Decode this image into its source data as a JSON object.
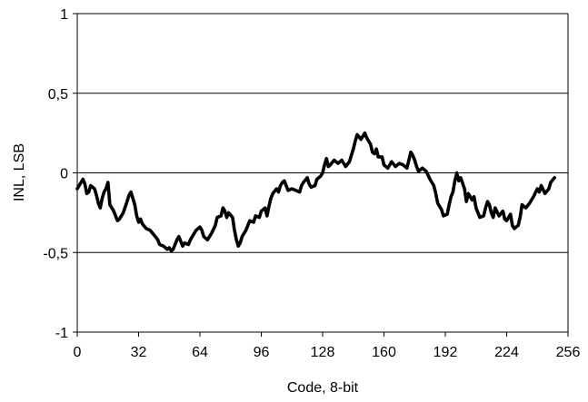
{
  "chart_data": {
    "type": "line",
    "title": "",
    "xlabel": "Code, 8-bit",
    "ylabel": "INL, LSB",
    "xlim": [
      0,
      256
    ],
    "ylim": [
      -1,
      1
    ],
    "x_ticks": [
      0,
      32,
      64,
      96,
      128,
      160,
      192,
      224,
      256
    ],
    "x_tick_labels": [
      "0",
      "32",
      "64",
      "96",
      "128",
      "160",
      "192",
      "224",
      "256"
    ],
    "y_ticks": [
      1,
      0.5,
      0,
      -0.5,
      -1
    ],
    "y_tick_labels": [
      "1",
      "0,5",
      "0",
      "-0,5",
      "-1"
    ],
    "grid": "horizontal",
    "legend": "none",
    "line_color": "#000000",
    "series": [
      {
        "points": [
          [
            0,
            -0.1
          ],
          [
            2,
            -0.06
          ],
          [
            3,
            -0.04
          ],
          [
            4,
            -0.07
          ],
          [
            5,
            -0.13
          ],
          [
            6,
            -0.12
          ],
          [
            7,
            -0.08
          ],
          [
            9,
            -0.1
          ],
          [
            10,
            -0.14
          ],
          [
            11,
            -0.19
          ],
          [
            12,
            -0.22
          ],
          [
            13,
            -0.16
          ],
          [
            14,
            -0.12
          ],
          [
            15,
            -0.1
          ],
          [
            16,
            -0.06
          ],
          [
            17,
            -0.2
          ],
          [
            18,
            -0.22
          ],
          [
            19,
            -0.24
          ],
          [
            20,
            -0.27
          ],
          [
            21,
            -0.3
          ],
          [
            22,
            -0.29
          ],
          [
            24,
            -0.25
          ],
          [
            26,
            -0.18
          ],
          [
            27,
            -0.14
          ],
          [
            28,
            -0.12
          ],
          [
            29,
            -0.16
          ],
          [
            30,
            -0.2
          ],
          [
            31,
            -0.27
          ],
          [
            32,
            -0.31
          ],
          [
            33,
            -0.29
          ],
          [
            34,
            -0.32
          ],
          [
            36,
            -0.35
          ],
          [
            38,
            -0.36
          ],
          [
            40,
            -0.39
          ],
          [
            42,
            -0.42
          ],
          [
            43,
            -0.45
          ],
          [
            45,
            -0.46
          ],
          [
            47,
            -0.48
          ],
          [
            48,
            -0.47
          ],
          [
            49,
            -0.49
          ],
          [
            50,
            -0.48
          ],
          [
            51,
            -0.45
          ],
          [
            52,
            -0.42
          ],
          [
            53,
            -0.4
          ],
          [
            54,
            -0.43
          ],
          [
            55,
            -0.46
          ],
          [
            56,
            -0.44
          ],
          [
            58,
            -0.45
          ],
          [
            59,
            -0.42
          ],
          [
            60,
            -0.4
          ],
          [
            62,
            -0.36
          ],
          [
            64,
            -0.34
          ],
          [
            65,
            -0.36
          ],
          [
            66,
            -0.4
          ],
          [
            68,
            -0.42
          ],
          [
            70,
            -0.38
          ],
          [
            72,
            -0.33
          ],
          [
            73,
            -0.28
          ],
          [
            75,
            -0.27
          ],
          [
            76,
            -0.22
          ],
          [
            77,
            -0.24
          ],
          [
            78,
            -0.28
          ],
          [
            79,
            -0.25
          ],
          [
            81,
            -0.28
          ],
          [
            82,
            -0.36
          ],
          [
            83,
            -0.42
          ],
          [
            84,
            -0.46
          ],
          [
            85,
            -0.44
          ],
          [
            86,
            -0.4
          ],
          [
            87,
            -0.38
          ],
          [
            88,
            -0.36
          ],
          [
            89,
            -0.33
          ],
          [
            90,
            -0.3
          ],
          [
            92,
            -0.31
          ],
          [
            93,
            -0.27
          ],
          [
            95,
            -0.28
          ],
          [
            96,
            -0.24
          ],
          [
            98,
            -0.22
          ],
          [
            99,
            -0.27
          ],
          [
            100,
            -0.21
          ],
          [
            101,
            -0.16
          ],
          [
            102,
            -0.13
          ],
          [
            104,
            -0.1
          ],
          [
            105,
            -0.12
          ],
          [
            106,
            -0.08
          ],
          [
            107,
            -0.06
          ],
          [
            108,
            -0.05
          ],
          [
            110,
            -0.11
          ],
          [
            112,
            -0.1
          ],
          [
            114,
            -0.11
          ],
          [
            116,
            -0.12
          ],
          [
            117,
            -0.08
          ],
          [
            118,
            -0.06
          ],
          [
            120,
            -0.03
          ],
          [
            121,
            -0.07
          ],
          [
            122,
            -0.09
          ],
          [
            124,
            -0.08
          ],
          [
            125,
            -0.04
          ],
          [
            127,
            -0.02
          ],
          [
            128,
            0.0
          ],
          [
            129,
            0.05
          ],
          [
            130,
            0.09
          ],
          [
            131,
            0.04
          ],
          [
            132,
            0.05
          ],
          [
            134,
            0.08
          ],
          [
            136,
            0.06
          ],
          [
            138,
            0.08
          ],
          [
            139,
            0.06
          ],
          [
            140,
            0.04
          ],
          [
            142,
            0.07
          ],
          [
            143,
            0.11
          ],
          [
            144,
            0.15
          ],
          [
            145,
            0.2
          ],
          [
            146,
            0.24
          ],
          [
            148,
            0.21
          ],
          [
            150,
            0.25
          ],
          [
            151,
            0.22
          ],
          [
            153,
            0.18
          ],
          [
            154,
            0.13
          ],
          [
            155,
            0.12
          ],
          [
            156,
            0.15
          ],
          [
            157,
            0.1
          ],
          [
            159,
            0.1
          ],
          [
            160,
            0.05
          ],
          [
            162,
            0.03
          ],
          [
            164,
            0.07
          ],
          [
            166,
            0.04
          ],
          [
            168,
            0.06
          ],
          [
            170,
            0.05
          ],
          [
            172,
            0.03
          ],
          [
            173,
            0.08
          ],
          [
            174,
            0.13
          ],
          [
            175,
            0.11
          ],
          [
            176,
            0.08
          ],
          [
            177,
            0.04
          ],
          [
            178,
            0.01
          ],
          [
            180,
            0.03
          ],
          [
            182,
            0.01
          ],
          [
            184,
            -0.04
          ],
          [
            186,
            -0.08
          ],
          [
            187,
            -0.13
          ],
          [
            188,
            -0.19
          ],
          [
            190,
            -0.23
          ],
          [
            191,
            -0.27
          ],
          [
            193,
            -0.26
          ],
          [
            194,
            -0.2
          ],
          [
            195,
            -0.15
          ],
          [
            196,
            -0.12
          ],
          [
            197,
            -0.05
          ],
          [
            198,
            0.0
          ],
          [
            199,
            -0.05
          ],
          [
            200,
            -0.03
          ],
          [
            202,
            -0.1
          ],
          [
            203,
            -0.18
          ],
          [
            204,
            -0.13
          ],
          [
            206,
            -0.17
          ],
          [
            207,
            -0.15
          ],
          [
            208,
            -0.22
          ],
          [
            209,
            -0.25
          ],
          [
            210,
            -0.28
          ],
          [
            212,
            -0.27
          ],
          [
            213,
            -0.22
          ],
          [
            214,
            -0.18
          ],
          [
            215,
            -0.2
          ],
          [
            216,
            -0.25
          ],
          [
            217,
            -0.28
          ],
          [
            218,
            -0.22
          ],
          [
            220,
            -0.27
          ],
          [
            222,
            -0.24
          ],
          [
            223,
            -0.29
          ],
          [
            224,
            -0.3
          ],
          [
            226,
            -0.26
          ],
          [
            227,
            -0.33
          ],
          [
            228,
            -0.35
          ],
          [
            230,
            -0.33
          ],
          [
            231,
            -0.28
          ],
          [
            232,
            -0.2
          ],
          [
            234,
            -0.22
          ],
          [
            236,
            -0.19
          ],
          [
            238,
            -0.15
          ],
          [
            240,
            -0.1
          ],
          [
            241,
            -0.12
          ],
          [
            242,
            -0.08
          ],
          [
            244,
            -0.13
          ],
          [
            246,
            -0.1
          ],
          [
            247,
            -0.06
          ],
          [
            249,
            -0.03
          ]
        ]
      }
    ]
  }
}
